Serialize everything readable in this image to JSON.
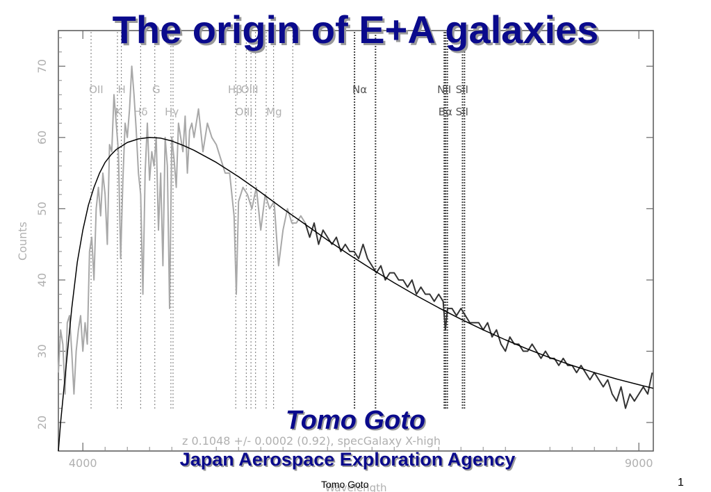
{
  "slide": {
    "title": "The origin of E+A galaxies",
    "author": "Tomo Goto",
    "affiliation": "Japan Aerospace Exploration Agency",
    "footer_name": "Tomo Goto",
    "page_number": "1"
  },
  "colors": {
    "title": "#0a0a8c",
    "spectrum_blue": "#a8a8a8",
    "spectrum_red": "#333333",
    "continuum": "#000000",
    "line_markers": "#888888"
  },
  "chart_data": {
    "type": "line",
    "xlabel": "Wavelength",
    "ylabel": "Counts",
    "xlim": [
      3780,
      9130
    ],
    "ylim": [
      16,
      75
    ],
    "xticks": [
      4000,
      9000
    ],
    "xtick_labels": [
      "4000",
      "9000"
    ],
    "yticks": [
      20,
      30,
      40,
      50,
      60,
      70
    ],
    "ytick_labels": [
      "20",
      "30",
      "40",
      "50",
      "60",
      "70"
    ],
    "annotation": "z  0.1048 +/-  0.0002 (0.92), specGalaxy X-high",
    "line_labels": [
      {
        "text": "OII",
        "x": 4120,
        "row": 1
      },
      {
        "text": "H",
        "x": 4350,
        "row": 1
      },
      {
        "text": "G",
        "x": 4660,
        "row": 1
      },
      {
        "text": "Hβ",
        "x": 5370,
        "row": 1
      },
      {
        "text": "OIII",
        "x": 5500,
        "row": 1
      },
      {
        "text": "Nα",
        "x": 6490,
        "row": 1
      },
      {
        "text": "NII",
        "x": 7250,
        "row": 1
      },
      {
        "text": "SII",
        "x": 7410,
        "row": 1
      },
      {
        "text": "K",
        "x": 4320,
        "row": 2
      },
      {
        "text": "Hδ",
        "x": 4520,
        "row": 2
      },
      {
        "text": "Hγ",
        "x": 4800,
        "row": 2
      },
      {
        "text": "OIII",
        "x": 5450,
        "row": 2
      },
      {
        "text": "Mg",
        "x": 5720,
        "row": 2
      },
      {
        "text": "Bα",
        "x": 7260,
        "row": 2
      },
      {
        "text": "SII",
        "x": 7410,
        "row": 2
      }
    ],
    "line_positions": [
      4074,
      4311,
      4346,
      4520,
      4647,
      4792,
      4811,
      5375,
      5470,
      5512,
      5553,
      5649,
      5715,
      5888,
      6443,
      6632,
      7250,
      7262,
      7278,
      7414,
      7432
    ],
    "series": [
      {
        "role": "blue_spectrum",
        "x": [
          3780,
          3800,
          3820,
          3840,
          3860,
          3880,
          3900,
          3920,
          3940,
          3960,
          3980,
          4000,
          4020,
          4040,
          4060,
          4080,
          4100,
          4120,
          4140,
          4160,
          4180,
          4200,
          4220,
          4240,
          4260,
          4280,
          4300,
          4320,
          4340,
          4360,
          4380,
          4400,
          4420,
          4440,
          4460,
          4480,
          4500,
          4520,
          4540,
          4560,
          4580,
          4600,
          4620,
          4640,
          4660,
          4680,
          4700,
          4720,
          4740,
          4760,
          4780,
          4800,
          4820,
          4840,
          4860,
          4880,
          4900,
          4920,
          4940,
          4960,
          4980,
          5000,
          5040,
          5080,
          5120,
          5160,
          5200,
          5240,
          5280,
          5320,
          5360,
          5380,
          5400,
          5440,
          5480,
          5520,
          5560,
          5600,
          5640,
          5680,
          5720,
          5760,
          5800,
          5840,
          5880,
          5920,
          5960,
          6000
        ],
        "y": [
          27,
          33,
          31,
          24,
          34,
          35,
          30,
          24,
          30,
          33,
          35,
          30,
          34,
          31,
          44,
          46,
          40,
          50,
          53,
          49,
          55,
          52,
          45,
          59,
          58,
          66,
          62,
          58,
          43,
          54,
          62,
          60,
          64,
          70,
          66,
          61,
          55,
          52,
          38,
          55,
          62,
          54,
          58,
          56,
          60,
          47,
          55,
          42,
          60,
          56,
          36,
          60,
          57,
          53,
          62,
          60,
          58,
          63,
          55,
          61,
          62,
          60,
          64,
          58,
          62,
          60,
          59,
          57,
          55,
          55,
          49,
          38,
          51,
          53,
          52,
          50,
          53,
          47,
          52,
          50,
          51,
          42,
          47,
          50,
          48,
          48,
          49,
          48
        ]
      },
      {
        "role": "red_spectrum",
        "x": [
          6000,
          6040,
          6080,
          6120,
          6160,
          6200,
          6240,
          6280,
          6320,
          6360,
          6400,
          6440,
          6480,
          6520,
          6560,
          6600,
          6640,
          6680,
          6720,
          6760,
          6800,
          6840,
          6880,
          6920,
          6960,
          7000,
          7040,
          7080,
          7120,
          7160,
          7200,
          7240,
          7260,
          7280,
          7320,
          7360,
          7400,
          7440,
          7480,
          7520,
          7560,
          7600,
          7640,
          7680,
          7720,
          7760,
          7800,
          7840,
          7880,
          7920,
          7960,
          8000,
          8040,
          8080,
          8120,
          8160,
          8200,
          8240,
          8280,
          8320,
          8360,
          8400,
          8440,
          8480,
          8520,
          8560,
          8600,
          8640,
          8680,
          8720,
          8760,
          8800,
          8840,
          8880,
          8920,
          8960,
          9000,
          9040,
          9080,
          9120
        ],
        "y": [
          48,
          46,
          48,
          45,
          47,
          46,
          45,
          46,
          44,
          45,
          44,
          44,
          43,
          45,
          43,
          42,
          41,
          42,
          40,
          41,
          41,
          40,
          40,
          39,
          40,
          38,
          39,
          38,
          38,
          37,
          38,
          37,
          33,
          36,
          36,
          35,
          36,
          35,
          34,
          34,
          34,
          33,
          34,
          32,
          33,
          31,
          30,
          32,
          31,
          31,
          30,
          30,
          31,
          30,
          29,
          30,
          29,
          29,
          28,
          29,
          28,
          28,
          27,
          28,
          27,
          26,
          27,
          26,
          25,
          26,
          24,
          23,
          25,
          22,
          24,
          23,
          24,
          25,
          24,
          27
        ]
      },
      {
        "role": "continuum_fit",
        "x": [
          3780,
          3800,
          3850,
          3900,
          3950,
          4000,
          4050,
          4100,
          4150,
          4200,
          4250,
          4300,
          4400,
          4500,
          4600,
          4700,
          4800,
          4900,
          5000,
          5200,
          5400,
          5600,
          5800,
          6000,
          6200,
          6400,
          6600,
          6800,
          7000,
          7200,
          7400,
          7600,
          7800,
          8000,
          8200,
          8400,
          8600,
          8800,
          9000,
          9130
        ],
        "y": [
          16,
          20,
          28,
          36,
          42.5,
          47,
          50.5,
          53,
          55,
          56.5,
          57.5,
          58.3,
          59.3,
          59.8,
          60,
          59.9,
          59.5,
          58.9,
          58.2,
          56.5,
          54.5,
          52.3,
          50,
          47.8,
          45.6,
          43.5,
          41.5,
          39.6,
          37.8,
          36.1,
          34.5,
          33,
          31.6,
          30.3,
          29.1,
          28,
          27,
          26.1,
          25.3,
          24.8
        ]
      }
    ]
  }
}
